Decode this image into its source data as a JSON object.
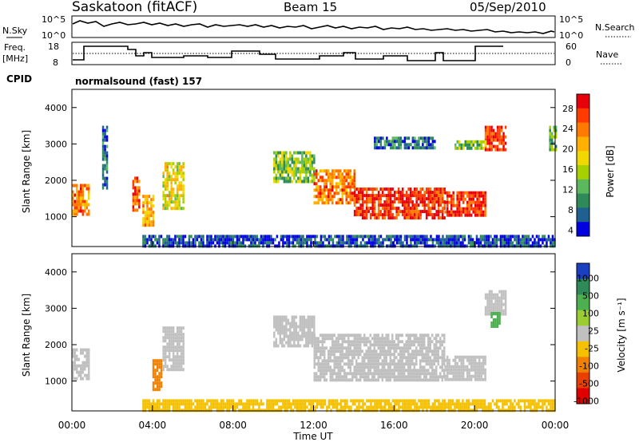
{
  "header": {
    "station": "Saskatoon (fitACF)",
    "beam": "Beam 15",
    "date": "05/Sep/2010"
  },
  "top_panel": {
    "left_label": "N.Sky",
    "y_top": "10^5",
    "y_bottom": "10^0",
    "right_label": "N.Search"
  },
  "freq_panel": {
    "left_label_1": "Freq.",
    "left_label_2": "[MHz]",
    "y_left_top": "18",
    "y_left_bottom": "8",
    "y_right_top": "60",
    "y_right_bottom": "0",
    "right_label": "Nave"
  },
  "cpid": {
    "label": "CPID",
    "value": "normalsound (fast) 157"
  },
  "power_cbar": {
    "label": "Power [dB]",
    "ticks": [
      "28",
      "24",
      "20",
      "16",
      "12",
      "8",
      "4"
    ],
    "colors": [
      "#e8000b",
      "#ff3b00",
      "#ff7a00",
      "#ffb000",
      "#f0d800",
      "#a8d000",
      "#5cb85c",
      "#2e8b57",
      "#1e6091",
      "#0000e0"
    ]
  },
  "velocity_cbar": {
    "label": "Velocity [m s⁻¹]",
    "ticks": [
      "1000",
      "500",
      "100",
      "25",
      "-25",
      "-100",
      "-500",
      "-1000"
    ],
    "colors": [
      "#1a3fc0",
      "#2e8b57",
      "#4caf50",
      "#9acd32",
      "#c0c0c0",
      "#f4c000",
      "#f08000",
      "#e84000",
      "#e00000"
    ]
  },
  "chart_data": {
    "type": "heatmap",
    "title": "Saskatoon (fitACF)  Beam 15  05/Sep/2010",
    "xlabel": "Time UT",
    "x_ticks": [
      "00:00",
      "04:00",
      "08:00",
      "12:00",
      "16:00",
      "20:00",
      "00:00"
    ],
    "ylabel": "Slant Range [km]",
    "y_ticks": [
      1000,
      2000,
      3000,
      4000
    ],
    "ylim": [
      180,
      4500
    ],
    "xlim_hours": [
      0,
      24
    ],
    "panels": [
      {
        "name": "Power [dB]",
        "regions": [
          {
            "t0": 0.0,
            "t1": 0.8,
            "r0": 1100,
            "r1": 1900,
            "level": 24
          },
          {
            "t0": 1.5,
            "t1": 1.7,
            "r0": 1800,
            "r1": 3500,
            "level": 8
          },
          {
            "t0": 3.0,
            "t1": 3.3,
            "r0": 1200,
            "r1": 2100,
            "level": 26
          },
          {
            "t0": 3.5,
            "t1": 4.0,
            "r0": 800,
            "r1": 1600,
            "level": 22
          },
          {
            "t0": 4.5,
            "t1": 5.5,
            "r0": 1200,
            "r1": 2500,
            "level": 18
          },
          {
            "t0": 10.0,
            "t1": 12.0,
            "r0": 2000,
            "r1": 2800,
            "level": 14
          },
          {
            "t0": 12.0,
            "t1": 14.0,
            "r0": 1400,
            "r1": 2300,
            "level": 24
          },
          {
            "t0": 14.0,
            "t1": 18.5,
            "r0": 1000,
            "r1": 1800,
            "level": 28
          },
          {
            "t0": 18.5,
            "t1": 20.5,
            "r0": 1000,
            "r1": 1700,
            "level": 28
          },
          {
            "t0": 20.5,
            "t1": 21.5,
            "r0": 2800,
            "r1": 3500,
            "level": 28
          },
          {
            "t0": 15.0,
            "t1": 18.0,
            "r0": 2900,
            "r1": 3200,
            "level": 8
          },
          {
            "t0": 19.0,
            "t1": 20.5,
            "r0": 2900,
            "r1": 3100,
            "level": 14
          },
          {
            "t0": 23.7,
            "t1": 24.0,
            "r0": 2800,
            "r1": 3500,
            "level": 12
          },
          {
            "t0": 3.5,
            "t1": 24.0,
            "r0": 200,
            "r1": 500,
            "level": 6
          }
        ]
      },
      {
        "name": "Velocity [m s-1]",
        "regions": [
          {
            "t0": 0.0,
            "t1": 0.8,
            "r0": 1100,
            "r1": 1900,
            "level": 0
          },
          {
            "t0": 4.0,
            "t1": 4.4,
            "r0": 800,
            "r1": 1600,
            "level": -300
          },
          {
            "t0": 4.5,
            "t1": 5.5,
            "r0": 1300,
            "r1": 2500,
            "level": 0
          },
          {
            "t0": 10.0,
            "t1": 12.0,
            "r0": 2000,
            "r1": 2800,
            "level": 0
          },
          {
            "t0": 12.0,
            "t1": 18.5,
            "r0": 1000,
            "r1": 2300,
            "level": 0
          },
          {
            "t0": 18.5,
            "t1": 20.5,
            "r0": 1000,
            "r1": 1700,
            "level": 0
          },
          {
            "t0": 20.5,
            "t1": 21.5,
            "r0": 2800,
            "r1": 3500,
            "level": 0
          },
          {
            "t0": 20.8,
            "t1": 21.2,
            "r0": 2500,
            "r1": 2900,
            "level": 200
          },
          {
            "t0": 3.5,
            "t1": 24.0,
            "r0": 200,
            "r1": 500,
            "level": -50
          }
        ]
      }
    ]
  }
}
